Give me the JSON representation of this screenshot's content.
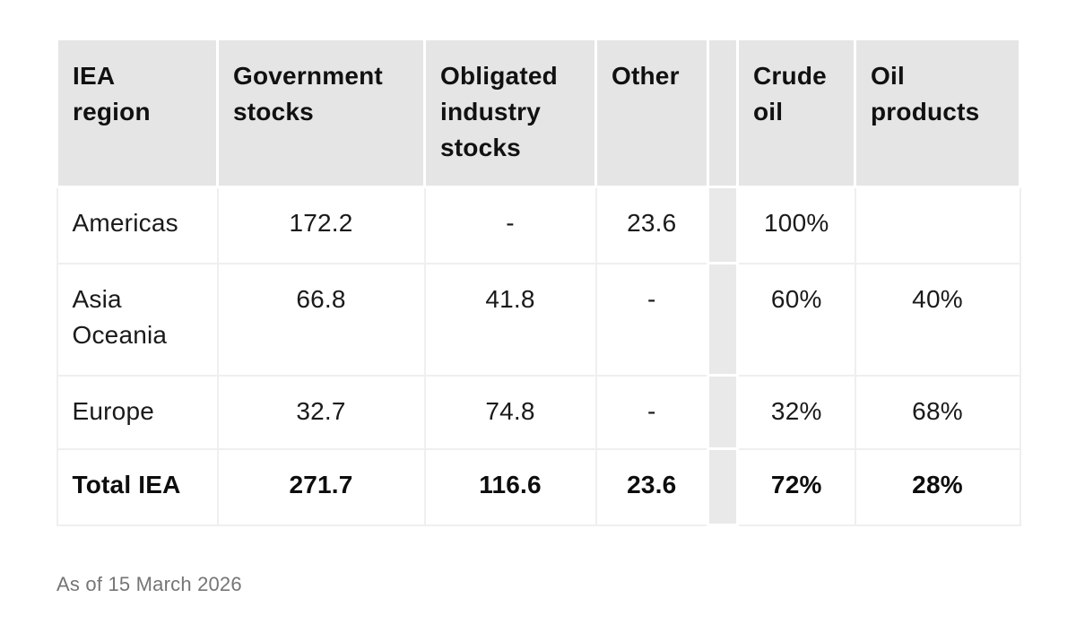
{
  "table": {
    "columns": [
      "IEA region",
      "Government stocks",
      "Obligated industry stocks",
      "Other",
      "",
      "Crude oil",
      "Oil products"
    ],
    "rows": [
      {
        "cells": [
          "Americas",
          "172.2",
          "-",
          "23.6",
          "",
          "100%",
          ""
        ]
      },
      {
        "cells": [
          "Asia Oceania",
          "66.8",
          "41.8",
          "-",
          "",
          "60%",
          "40%"
        ]
      },
      {
        "cells": [
          "Europe",
          "32.7",
          "74.8",
          "-",
          "",
          "32%",
          "68%"
        ]
      },
      {
        "cells": [
          "Total IEA",
          "271.7",
          "116.6",
          "23.6",
          "",
          "72%",
          "28%"
        ]
      }
    ],
    "footnote": "As of 15 March 2026"
  },
  "chart_data": {
    "type": "table",
    "title": "",
    "columns": [
      "IEA region",
      "Government stocks",
      "Obligated industry stocks",
      "Other",
      "Crude oil",
      "Oil products"
    ],
    "rows": [
      [
        "Americas",
        172.2,
        "-",
        23.6,
        "100%",
        ""
      ],
      [
        "Asia Oceania",
        66.8,
        41.8,
        "-",
        "60%",
        "40%"
      ],
      [
        "Europe",
        32.7,
        74.8,
        "-",
        "32%",
        "68%"
      ],
      [
        "Total IEA",
        271.7,
        116.6,
        23.6,
        "72%",
        "28%"
      ]
    ],
    "note": "As of 15 March 2026",
    "layout_hints": {
      "bold_total_row": true,
      "spacer_between": [
        "Other",
        "Crude oil"
      ],
      "numeric_columns_centered": true
    }
  },
  "colors": {
    "header_bg": "#e5e5e5",
    "spacer_bg": "#e9e9e9",
    "grid_line": "#efefef",
    "text": "#1a1a1a",
    "footnote_text": "#757575"
  }
}
